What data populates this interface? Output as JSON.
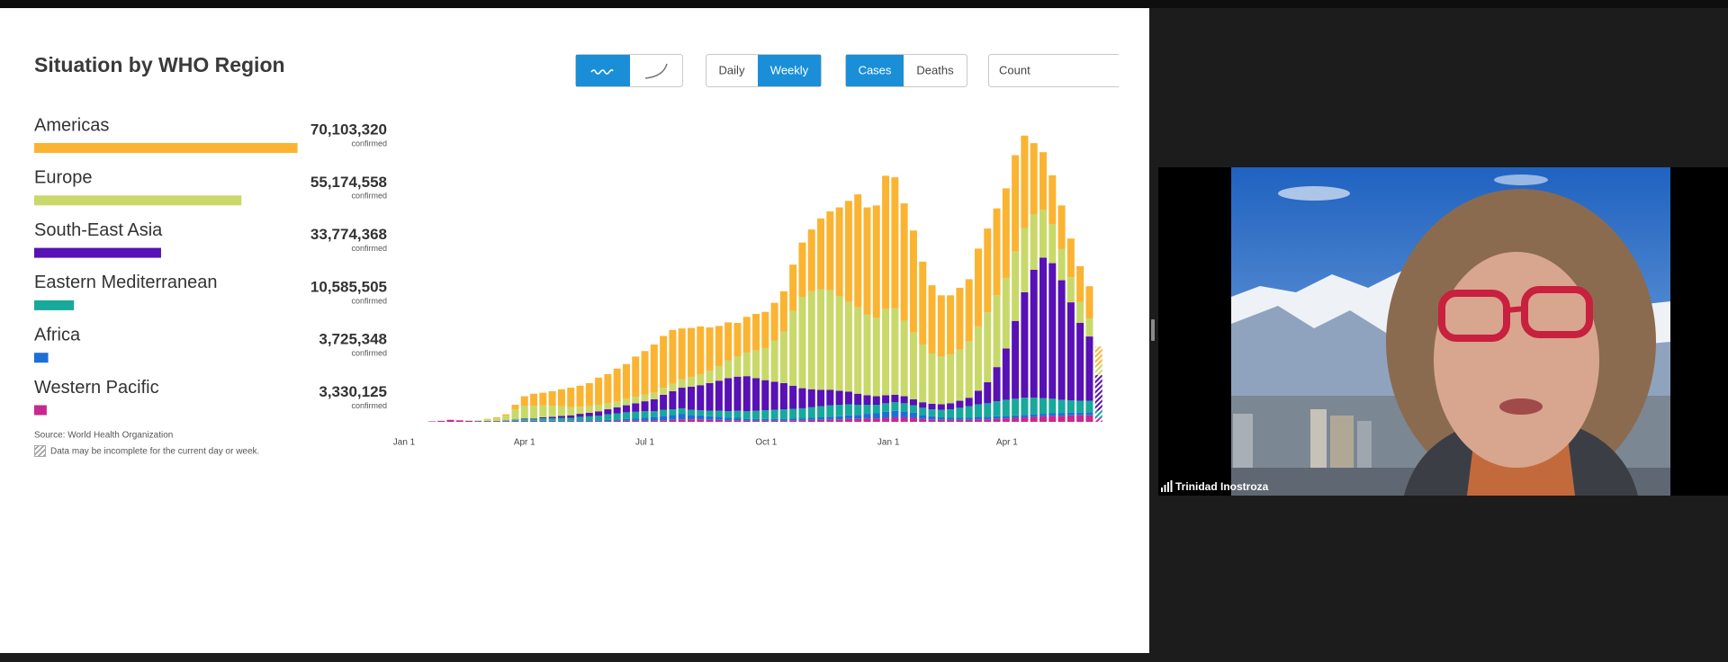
{
  "header": {
    "title": "Situation by WHO Region"
  },
  "controls": {
    "period": [
      "Daily",
      "Weekly"
    ],
    "measure": [
      "Cases",
      "Deaths"
    ],
    "scale": "Count"
  },
  "source": "Source:  World Health Organization",
  "note": "Data may be incomplete for the current day or week.",
  "video": {
    "participant": "Trinidad Inostroza"
  },
  "chart_data": [
    {
      "type": "hbar",
      "categories": [
        "Americas",
        "Europe",
        "South-East Asia",
        "Eastern Mediterranean",
        "Africa",
        "Western Pacific"
      ],
      "values": [
        70103320,
        55174558,
        33774368,
        10585505,
        3725348,
        3330125
      ],
      "value_labels": [
        "70,103,320",
        "55,174,558",
        "33,774,368",
        "10,585,505",
        "3,725,348",
        "3,330,125"
      ],
      "value_note": "confirmed",
      "colors": [
        "#fbb432",
        "#c8d96a",
        "#5711b5",
        "#17a99b",
        "#1d6fd6",
        "#c9288f"
      ]
    },
    {
      "type": "stacked_bar",
      "x": [
        3,
        4,
        5,
        6,
        7,
        8,
        9,
        10,
        11,
        12,
        13,
        14,
        15,
        16,
        17,
        18,
        19,
        20,
        21,
        22,
        23,
        24,
        25,
        26,
        27,
        28,
        29,
        30,
        31,
        32,
        33,
        34,
        35,
        36,
        37,
        38,
        39,
        40,
        41,
        42,
        43,
        44,
        45,
        46,
        47,
        48,
        49,
        50,
        51,
        52,
        53,
        54,
        55,
        56,
        57,
        58,
        59,
        60,
        61,
        62,
        63,
        64,
        65,
        66,
        67,
        68,
        69,
        70,
        71,
        72,
        73,
        74,
        75
      ],
      "xlim": [
        0,
        75.5
      ],
      "xticks": [
        {
          "value": 0,
          "label": "Jan 1"
        },
        {
          "value": 13,
          "label": "Apr 1"
        },
        {
          "value": 26,
          "label": "Jul 1"
        },
        {
          "value": 39.1,
          "label": "Oct 1"
        },
        {
          "value": 52.3,
          "label": "Jan 1"
        },
        {
          "value": 65.1,
          "label": "Apr 1"
        }
      ],
      "ylim": [
        0,
        6
      ],
      "last_incomplete": true,
      "series": [
        {
          "values": [
            0,
            0,
            0,
            0,
            0,
            0,
            0.01,
            0.02,
            0.03,
            0.09,
            0.19,
            0.24,
            0.25,
            0.29,
            0.34,
            0.39,
            0.42,
            0.46,
            0.54,
            0.58,
            0.65,
            0.69,
            0.8,
            0.87,
            0.96,
            1.03,
            1.07,
            1.01,
            0.98,
            0.95,
            0.86,
            0.8,
            0.76,
            0.67,
            0.71,
            0.73,
            0.72,
            0.75,
            0.8,
            0.92,
            1.08,
            1.23,
            1.41,
            1.57,
            1.77,
            2.01,
            2.25,
            2.13,
            2.24,
            2.65,
            2.61,
            2.34,
            2.03,
            1.65,
            1.36,
            1.22,
            1.18,
            1.23,
            1.24,
            1.55,
            1.67,
            1.73,
            1.79,
            1.92,
            1.84,
            1.42,
            1.15,
            0.97,
            0.87,
            0.77,
            0.71,
            0.64,
            0.38
          ]
        },
        {
          "values": [
            0,
            0,
            0,
            0,
            0.01,
            0.01,
            0.03,
            0.05,
            0.09,
            0.2,
            0.25,
            0.25,
            0.24,
            0.22,
            0.19,
            0.16,
            0.14,
            0.13,
            0.13,
            0.12,
            0.12,
            0.13,
            0.13,
            0.13,
            0.13,
            0.14,
            0.15,
            0.17,
            0.19,
            0.22,
            0.25,
            0.29,
            0.35,
            0.4,
            0.47,
            0.55,
            0.64,
            0.82,
            1.03,
            1.49,
            1.82,
            1.95,
            2.0,
            1.98,
            1.88,
            1.79,
            1.72,
            1.61,
            1.56,
            1.72,
            1.72,
            1.5,
            1.33,
            1.15,
            1.0,
            0.95,
            0.97,
            1.02,
            1.12,
            1.28,
            1.39,
            1.43,
            1.4,
            1.38,
            1.28,
            1.1,
            0.95,
            0.78,
            0.62,
            0.5,
            0.42,
            0.36,
            0.19
          ]
        },
        {
          "values": [
            0,
            0,
            0,
            0,
            0,
            0,
            0,
            0,
            0,
            0,
            0.01,
            0.01,
            0.02,
            0.03,
            0.04,
            0.05,
            0.06,
            0.07,
            0.09,
            0.1,
            0.12,
            0.14,
            0.17,
            0.2,
            0.24,
            0.3,
            0.36,
            0.41,
            0.46,
            0.5,
            0.55,
            0.6,
            0.66,
            0.68,
            0.7,
            0.65,
            0.6,
            0.56,
            0.52,
            0.46,
            0.4,
            0.36,
            0.33,
            0.31,
            0.28,
            0.25,
            0.22,
            0.19,
            0.17,
            0.16,
            0.15,
            0.14,
            0.12,
            0.11,
            0.11,
            0.11,
            0.12,
            0.14,
            0.17,
            0.27,
            0.42,
            0.68,
            1.02,
            1.55,
            2.1,
            2.55,
            2.8,
            2.7,
            2.38,
            1.95,
            1.55,
            1.28,
            0.71
          ]
        },
        {
          "values": [
            0,
            0,
            0,
            0,
            0,
            0.01,
            0.01,
            0.01,
            0.02,
            0.03,
            0.04,
            0.04,
            0.05,
            0.05,
            0.06,
            0.06,
            0.07,
            0.08,
            0.09,
            0.11,
            0.12,
            0.13,
            0.13,
            0.13,
            0.12,
            0.12,
            0.11,
            0.11,
            0.1,
            0.1,
            0.11,
            0.12,
            0.13,
            0.14,
            0.15,
            0.16,
            0.17,
            0.18,
            0.19,
            0.19,
            0.2,
            0.21,
            0.22,
            0.23,
            0.23,
            0.22,
            0.2,
            0.18,
            0.17,
            0.17,
            0.17,
            0.16,
            0.15,
            0.14,
            0.14,
            0.15,
            0.17,
            0.2,
            0.23,
            0.25,
            0.27,
            0.3,
            0.32,
            0.33,
            0.34,
            0.33,
            0.31,
            0.29,
            0.27,
            0.25,
            0.24,
            0.23,
            0.12
          ]
        },
        {
          "values": [
            0,
            0,
            0,
            0,
            0,
            0,
            0,
            0,
            0,
            0.01,
            0.01,
            0.01,
            0.01,
            0.01,
            0.01,
            0.01,
            0.02,
            0.02,
            0.02,
            0.03,
            0.03,
            0.04,
            0.05,
            0.06,
            0.07,
            0.09,
            0.1,
            0.11,
            0.09,
            0.08,
            0.07,
            0.06,
            0.05,
            0.05,
            0.04,
            0.04,
            0.04,
            0.04,
            0.04,
            0.04,
            0.04,
            0.04,
            0.05,
            0.05,
            0.06,
            0.07,
            0.08,
            0.09,
            0.1,
            0.12,
            0.13,
            0.12,
            0.1,
            0.08,
            0.06,
            0.05,
            0.04,
            0.04,
            0.04,
            0.05,
            0.05,
            0.05,
            0.05,
            0.05,
            0.05,
            0.05,
            0.05,
            0.05,
            0.05,
            0.05,
            0.05,
            0.06,
            0.03
          ]
        },
        {
          "values": [
            0.01,
            0.02,
            0.04,
            0.03,
            0.02,
            0.01,
            0.01,
            0.01,
            0.01,
            0.01,
            0.01,
            0.01,
            0.01,
            0.01,
            0.01,
            0.01,
            0.01,
            0.01,
            0.01,
            0.01,
            0.02,
            0.02,
            0.02,
            0.02,
            0.02,
            0.03,
            0.04,
            0.05,
            0.05,
            0.05,
            0.04,
            0.04,
            0.03,
            0.03,
            0.02,
            0.02,
            0.02,
            0.02,
            0.02,
            0.03,
            0.03,
            0.04,
            0.04,
            0.05,
            0.05,
            0.06,
            0.06,
            0.07,
            0.07,
            0.08,
            0.09,
            0.09,
            0.08,
            0.06,
            0.05,
            0.04,
            0.04,
            0.04,
            0.04,
            0.05,
            0.05,
            0.06,
            0.07,
            0.08,
            0.09,
            0.1,
            0.11,
            0.12,
            0.12,
            0.13,
            0.13,
            0.13,
            0.07
          ]
        }
      ]
    }
  ]
}
